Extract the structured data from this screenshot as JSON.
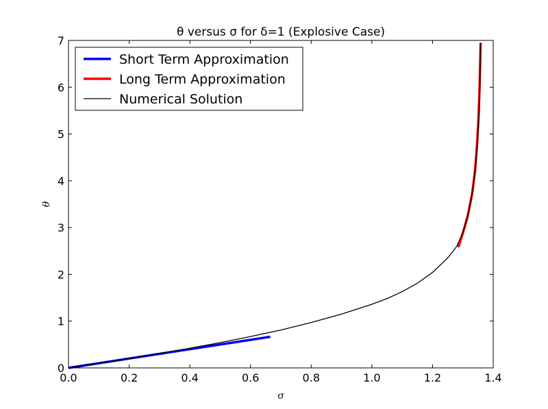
{
  "chart_data": {
    "type": "line",
    "title": "θ versus σ for δ=1 (Explosive Case)",
    "xlabel": "σ",
    "ylabel": "θ",
    "xlim": [
      0,
      1.4
    ],
    "ylim": [
      0,
      7
    ],
    "xticks": [
      0,
      0.2,
      0.4,
      0.6,
      0.8,
      1.0,
      1.2,
      1.4
    ],
    "xtick_labels": [
      "0.0",
      "0.2",
      "0.4",
      "0.6",
      "0.8",
      "1.0",
      "1.2",
      "1.4"
    ],
    "yticks": [
      0,
      1,
      2,
      3,
      4,
      5,
      6,
      7
    ],
    "ytick_labels": [
      "0",
      "1",
      "2",
      "3",
      "4",
      "5",
      "6",
      "7"
    ],
    "grid": false,
    "legend_position": "top-left",
    "series": [
      {
        "name": "Short Term Approximation",
        "color": "#0000ff",
        "x": [
          0.0,
          0.1,
          0.2,
          0.3,
          0.4,
          0.5,
          0.6,
          0.665
        ],
        "y": [
          0.0,
          0.1,
          0.2,
          0.3,
          0.4,
          0.5,
          0.6,
          0.665
        ]
      },
      {
        "name": "Long Term Approximation",
        "color": "#ff0000",
        "x": [
          1.285,
          1.3,
          1.315,
          1.33,
          1.34,
          1.347,
          1.352,
          1.355,
          1.357,
          1.3585
        ],
        "y": [
          2.58,
          2.88,
          3.22,
          3.7,
          4.2,
          4.8,
          5.4,
          6.0,
          6.5,
          6.95
        ]
      },
      {
        "name": "Numerical Solution",
        "color": "#000000",
        "x": [
          0.0,
          0.1,
          0.2,
          0.3,
          0.4,
          0.5,
          0.6,
          0.7,
          0.8,
          0.9,
          1.0,
          1.05,
          1.1,
          1.15,
          1.2,
          1.25,
          1.28,
          1.3,
          1.32,
          1.335,
          1.345,
          1.352,
          1.356,
          1.3585
        ],
        "y": [
          0.0,
          0.1,
          0.2,
          0.31,
          0.42,
          0.54,
          0.67,
          0.81,
          0.97,
          1.15,
          1.36,
          1.48,
          1.63,
          1.81,
          2.04,
          2.35,
          2.6,
          2.9,
          3.35,
          3.9,
          4.5,
          5.2,
          6.0,
          6.95
        ]
      }
    ]
  }
}
